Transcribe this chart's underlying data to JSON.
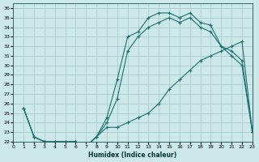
{
  "xlabel": "Humidex (Indice chaleur)",
  "bg_color": "#cce8e8",
  "grid_color": "#aacccc",
  "line_color": "#1a7070",
  "xlim": [
    0,
    23
  ],
  "ylim": [
    22,
    36.5
  ],
  "xticks": [
    0,
    1,
    2,
    3,
    4,
    5,
    6,
    7,
    8,
    9,
    10,
    11,
    12,
    13,
    14,
    15,
    16,
    17,
    18,
    19,
    20,
    21,
    22,
    23
  ],
  "yticks": [
    22,
    23,
    24,
    25,
    26,
    27,
    28,
    29,
    30,
    31,
    32,
    33,
    34,
    35,
    36
  ],
  "curve_upper_x": [
    1,
    2,
    3,
    4,
    5,
    6,
    7,
    8,
    9,
    10,
    11,
    12,
    13,
    14,
    15,
    16,
    17,
    18,
    19,
    20,
    21,
    22,
    23
  ],
  "curve_upper_y": [
    25.5,
    22.5,
    22.0,
    22.0,
    22.0,
    22.0,
    21.5,
    22.5,
    24.5,
    28.5,
    33.0,
    33.5,
    35.0,
    35.5,
    35.5,
    35.0,
    35.5,
    34.5,
    34.2,
    32.0,
    31.0,
    30.0,
    23.0
  ],
  "curve_mid_x": [
    1,
    2,
    3,
    4,
    5,
    6,
    7,
    8,
    9,
    10,
    11,
    12,
    13,
    14,
    15,
    16,
    17,
    18,
    19,
    20,
    21,
    22,
    23
  ],
  "curve_mid_y": [
    25.5,
    22.5,
    22.0,
    22.0,
    22.0,
    22.0,
    21.5,
    22.5,
    24.0,
    26.5,
    31.5,
    33.0,
    34.0,
    34.5,
    35.0,
    34.5,
    35.0,
    34.0,
    33.5,
    32.0,
    31.5,
    30.5,
    23.0
  ],
  "curve_low_x": [
    1,
    2,
    3,
    4,
    5,
    6,
    7,
    8,
    9,
    10,
    11,
    12,
    13,
    14,
    15,
    16,
    17,
    18,
    19,
    20,
    21,
    22,
    23
  ],
  "curve_low_y": [
    25.5,
    22.5,
    22.0,
    22.0,
    22.0,
    22.0,
    21.5,
    22.5,
    23.5,
    23.5,
    24.0,
    24.5,
    25.0,
    26.0,
    27.5,
    28.5,
    29.5,
    30.5,
    31.0,
    31.5,
    32.0,
    32.5,
    23.0
  ]
}
